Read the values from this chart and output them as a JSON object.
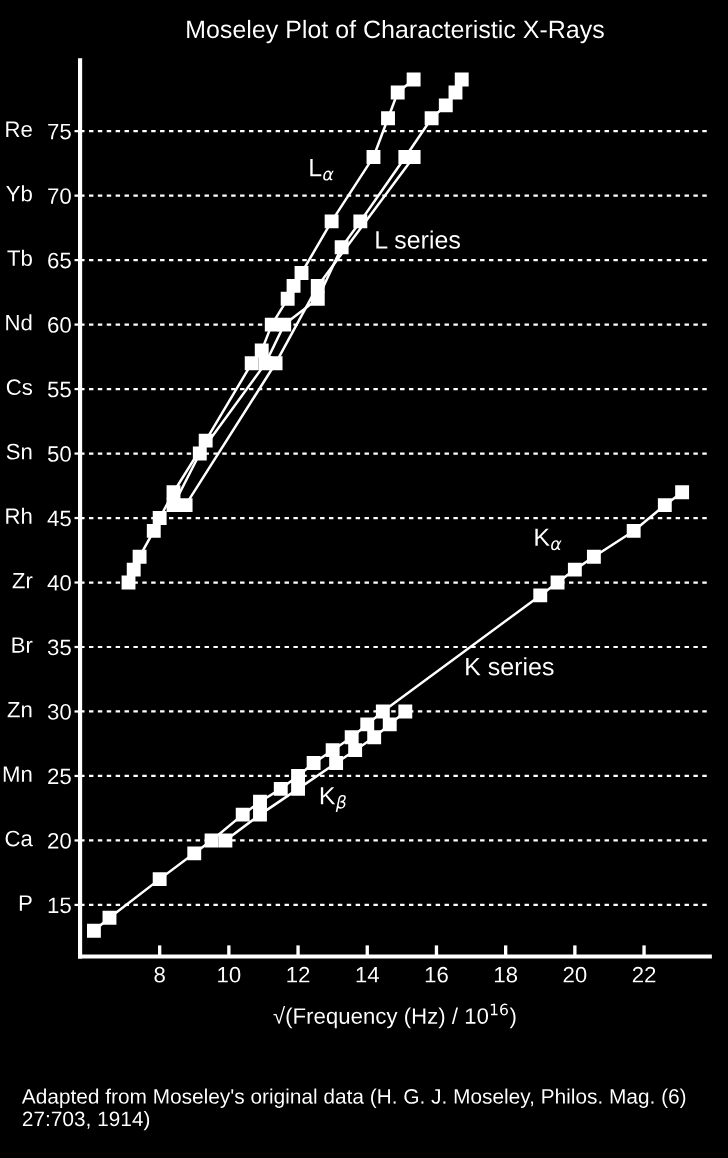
{
  "chart_data": {
    "type": "line",
    "title": "Moseley Plot of Characteristic X-Rays",
    "xlabel": "√(Frequency (Hz) / 10$^{16}$)",
    "xlim": [
      5.7,
      23.9
    ],
    "ylim": [
      11,
      80.5
    ],
    "xticks": [
      8,
      10,
      12,
      14,
      16,
      18,
      20,
      22
    ],
    "yticks": [
      15,
      20,
      25,
      30,
      35,
      40,
      45,
      50,
      55,
      60,
      65,
      70,
      75
    ],
    "grid": "y",
    "marker": "square",
    "line_style": "solid",
    "legend": false,
    "series": [
      {
        "color": "#ffffff",
        "x": [
          6.1,
          6.55,
          8.0,
          9.0,
          9.5,
          10.4,
          10.9,
          11.5,
          12.0,
          12.45,
          13.0,
          13.55,
          14.0,
          14.45,
          19.0,
          19.5,
          20.0,
          20.55,
          21.7,
          22.6,
          23.1
        ],
        "values": [
          13,
          14,
          17,
          19,
          20,
          22,
          23,
          24,
          25,
          26,
          27,
          28,
          29,
          30,
          39,
          40,
          41,
          42,
          44,
          46,
          47
        ]
      },
      {
        "color": "#ffffff",
        "x": [
          9.9,
          10.9,
          12.0,
          13.1,
          13.65,
          14.2,
          14.65,
          15.1
        ],
        "values": [
          20,
          22,
          24,
          26,
          27,
          28,
          29,
          30
        ]
      },
      {
        "color": "#ffffff",
        "x": [
          7.1,
          7.25,
          7.42,
          7.83,
          8.0,
          8.4,
          9.33,
          10.66,
          10.95,
          11.24,
          11.7,
          11.87,
          12.1,
          12.97,
          14.18,
          14.6,
          14.88,
          15.34
        ],
        "values": [
          40,
          41,
          42,
          44,
          45,
          47,
          51,
          57,
          58,
          60,
          62,
          63,
          64,
          68,
          73,
          76,
          78,
          79
        ]
      },
      {
        "color": "#ffffff",
        "x": [
          8.4,
          9.16,
          11.06,
          11.6,
          12.57,
          13.26,
          13.8,
          15.1,
          15.86,
          16.27,
          16.55,
          16.73
        ],
        "values": [
          46,
          50,
          57,
          60,
          62,
          66,
          68,
          73,
          76,
          77,
          78,
          79
        ]
      },
      {
        "color": "#ffffff",
        "x": [
          8.75,
          11.35,
          12.57,
          15.34
        ],
        "values": [
          46,
          57,
          63,
          73
        ]
      }
    ],
    "annotations": [
      {
        "text": "L$_{α}$",
        "x": 13.9,
        "y": 72
      },
      {
        "text": "L series",
        "x": 13.4,
        "y": 66.4
      },
      {
        "text": "K$_{α}$",
        "x": 18.8,
        "y": 38.6
      },
      {
        "text": "K series",
        "x": 16.8,
        "y": 34.6
      },
      {
        "text": "K$_{β}$",
        "x": 12.6,
        "y": 25.1
      },
      "P",
      "Ca",
      "Mn",
      "Zn",
      "Br",
      "Zr",
      "Rh",
      "Sn",
      "Cs",
      "Nd",
      "Tb",
      "Yb",
      "Re",
      "Adapted from Moseley's original data (H. G. J. Moseley, Philos. Mag. (6) 27:703, 1914)"
    ]
  }
}
